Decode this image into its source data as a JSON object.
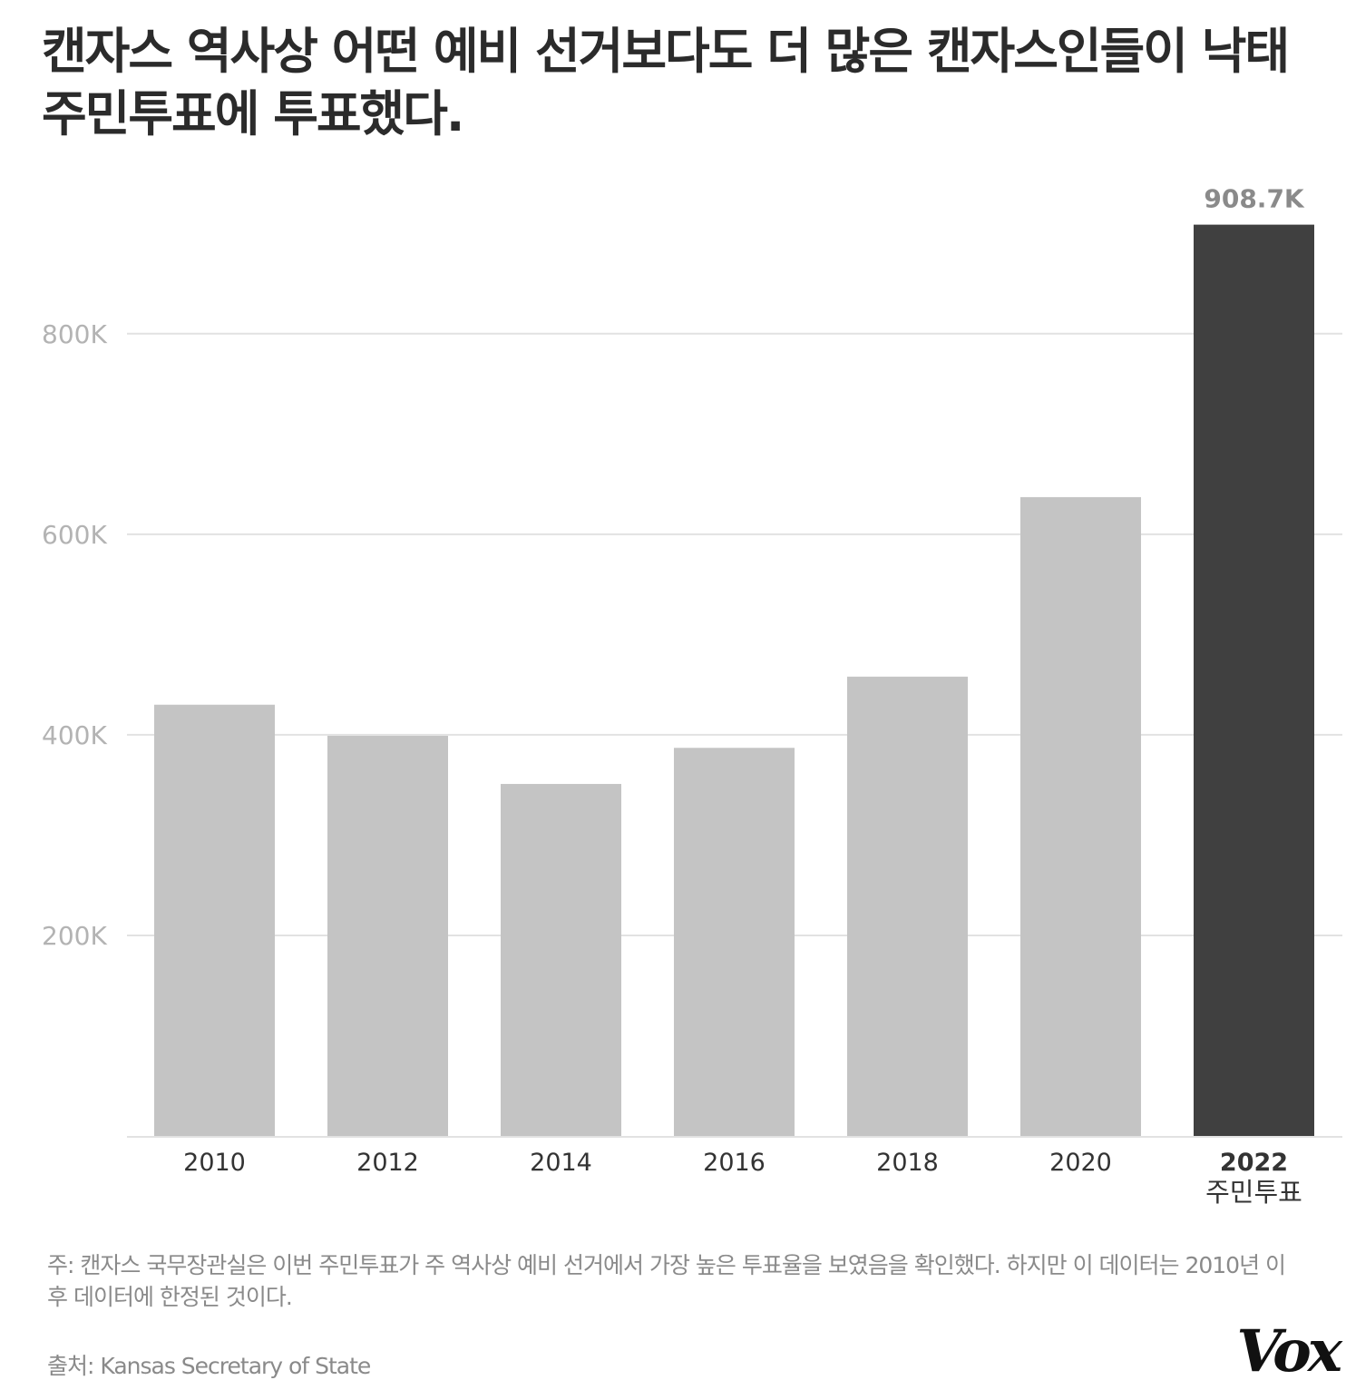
{
  "title": "캔자스 역사상 어떤 예비 선거보다도 더 많은 캔자스인들이 낙태 주민투표에 투표했다.",
  "chart_data": {
    "type": "bar",
    "categories": [
      "2010",
      "2012",
      "2014",
      "2016",
      "2018",
      "2020",
      "2022"
    ],
    "category_sublabels": [
      "",
      "",
      "",
      "",
      "",
      "",
      "주민투표"
    ],
    "values": [
      430,
      399,
      351,
      387,
      458,
      637,
      908.7
    ],
    "value_unit": "K",
    "highlight_index": 6,
    "highlight_label": "908.7K",
    "yticks": [
      200,
      400,
      600,
      800
    ],
    "ytick_labels": [
      "200K",
      "400K",
      "600K",
      "800K"
    ],
    "ylim": [
      0,
      1000
    ],
    "grid": true,
    "colors": {
      "bar": "#c4c4c4",
      "highlight": "#404040",
      "grid": "#e2e2e2",
      "axis_text": "#b3b3b3",
      "highlight_label": "#8a8a8a"
    }
  },
  "note": "주: 캔자스 국무장관실은 이번 주민투표가 주 역사상 예비 선거에서 가장 높은 투표율을 보였음을 확인했다. 하지만 이 데이터는 2010년 이후 데이터에 한정된 것이다.",
  "source": "출처: Kansas Secretary of State",
  "logo": "Vox"
}
